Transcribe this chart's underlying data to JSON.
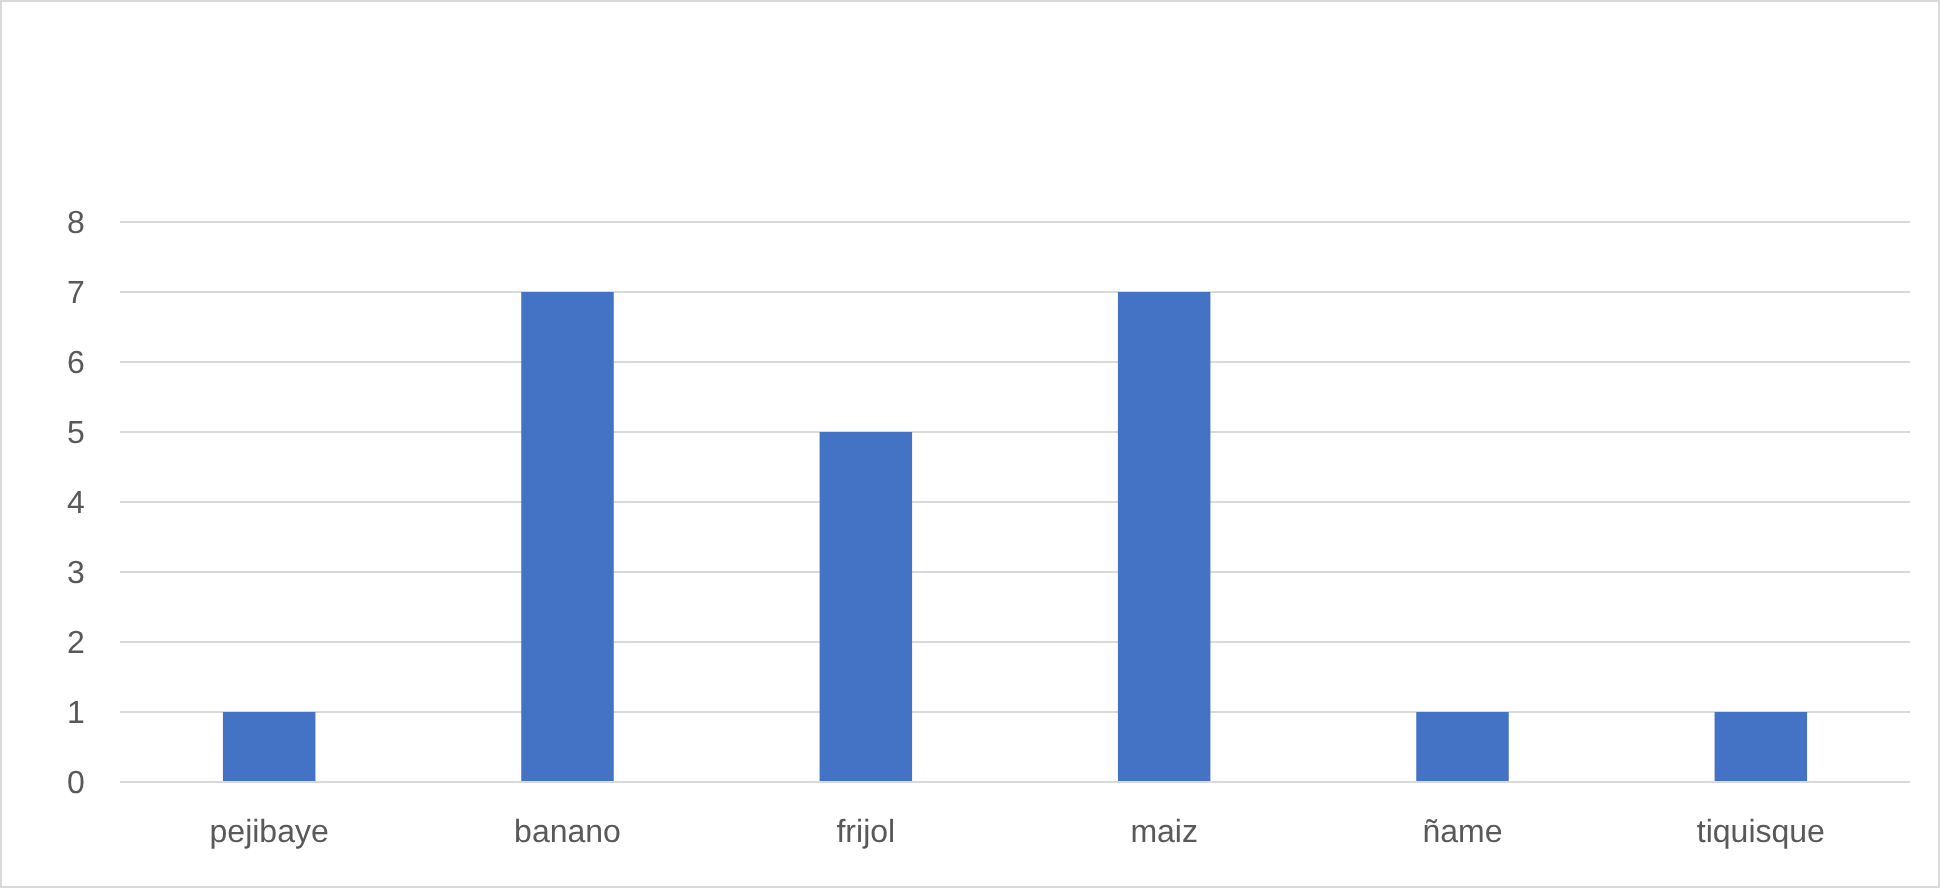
{
  "chart_data": {
    "type": "bar",
    "categories": [
      "pejibaye",
      "banano",
      "frijol",
      "maiz",
      "ñame",
      "tiquisque"
    ],
    "values": [
      1,
      7,
      5,
      7,
      1,
      1
    ],
    "color": "#4472c4",
    "ylim": [
      0,
      8
    ],
    "yticks": [
      0,
      1,
      2,
      3,
      4,
      5,
      6,
      7,
      8
    ],
    "grid": "y"
  }
}
